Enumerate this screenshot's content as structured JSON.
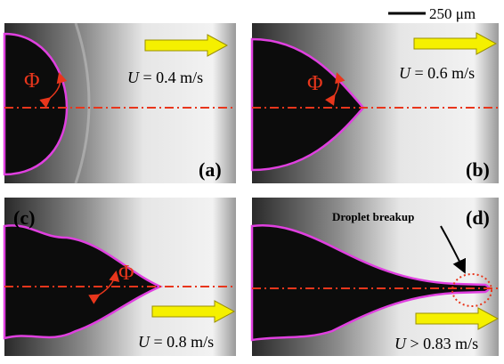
{
  "scale_bar": {
    "label": "250 μm"
  },
  "panels": [
    {
      "label": "(a)",
      "velocity": {
        "symbol": "U",
        "relation": "= 0.4 m/s"
      },
      "angle_symbol": "Φ"
    },
    {
      "label": "(b)",
      "velocity": {
        "symbol": "U",
        "relation": "= 0.6 m/s"
      },
      "angle_symbol": "Φ"
    },
    {
      "label": "(c)",
      "velocity": {
        "symbol": "U",
        "relation": "= 0.8 m/s"
      },
      "angle_symbol": "Φ"
    },
    {
      "label": "(d)",
      "velocity": {
        "symbol": "U",
        "relation": "> 0.83 m/s"
      },
      "annotation": "Droplet breakup"
    }
  ]
}
